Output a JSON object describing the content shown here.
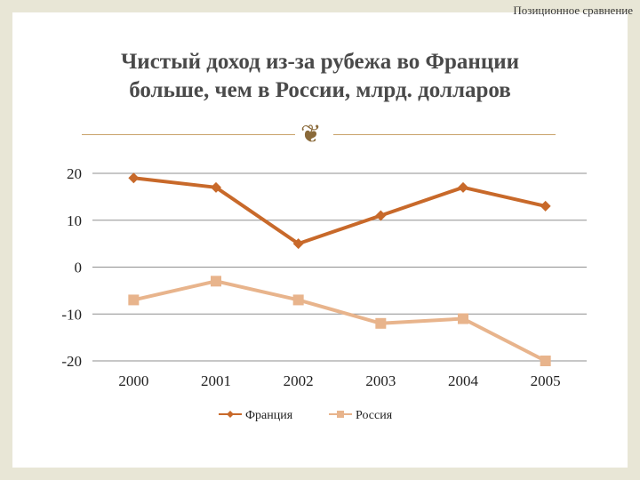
{
  "header": {
    "section_label": "Позиционное сравнение"
  },
  "title": {
    "line1": "Чистый доход из-за рубежа во Франции",
    "line2": "больше, чем в России, млрд. долларов"
  },
  "ornament_icon": "decorative-swirl-icon",
  "colors": {
    "france": "#c8692a",
    "russia": "#e8b48c",
    "grid": "#8f8f8f",
    "background": "#e8e6d6"
  },
  "chart_data": {
    "type": "line",
    "title": "Чистый доход из-за рубежа во Франции больше, чем в России, млрд. долларов",
    "categories": [
      "2000",
      "2001",
      "2002",
      "2003",
      "2004",
      "2005"
    ],
    "series": [
      {
        "name": "Франция",
        "values": [
          19,
          17,
          5,
          11,
          17,
          13
        ],
        "marker": "diamond"
      },
      {
        "name": "Россия",
        "values": [
          -7,
          -3,
          -7,
          -12,
          -11,
          -20
        ],
        "marker": "square"
      }
    ],
    "y_ticks": [
      "20",
      "10",
      "0",
      "-10",
      "-20"
    ],
    "ylim": [
      -20,
      20
    ],
    "grid": true,
    "legend_position": "bottom"
  }
}
